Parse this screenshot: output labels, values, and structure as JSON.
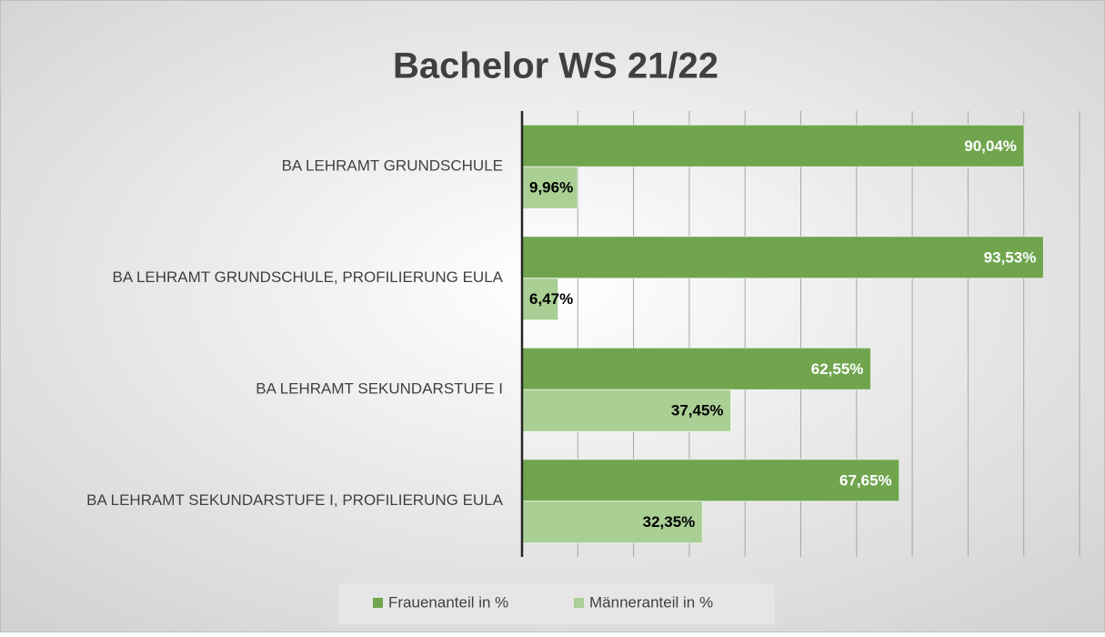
{
  "chart_data": {
    "type": "hbar",
    "title": "Bachelor WS 21/22",
    "categories": [
      "BA LEHRAMT GRUNDSCHULE",
      "BA LEHRAMT GRUNDSCHULE, PROFILIERUNG EULA",
      "BA LEHRAMT SEKUNDARSTUFE I",
      "BA LEHRAMT SEKUNDARSTUFE I, PROFILIERUNG EULA"
    ],
    "series": [
      {
        "name": "Frauenanteil in %",
        "color": "#70a54e",
        "label_color": "#ffffff",
        "values": [
          90.04,
          93.53,
          62.55,
          67.65
        ],
        "value_labels": [
          "90,04%",
          "93,53%",
          "62,55%",
          "67,65%"
        ]
      },
      {
        "name": "Männeranteil in %",
        "color": "#a9cf95",
        "label_color": "#000000",
        "values": [
          9.96,
          6.47,
          37.45,
          32.35
        ],
        "value_labels": [
          "9,96%",
          "6,47%",
          "37,45%",
          "32,35%"
        ]
      }
    ],
    "xlim": [
      0,
      100
    ],
    "xticks": [
      0,
      10,
      20,
      30,
      40,
      50,
      60,
      70,
      80,
      90,
      100
    ],
    "grid": true,
    "legend": "bottom"
  }
}
